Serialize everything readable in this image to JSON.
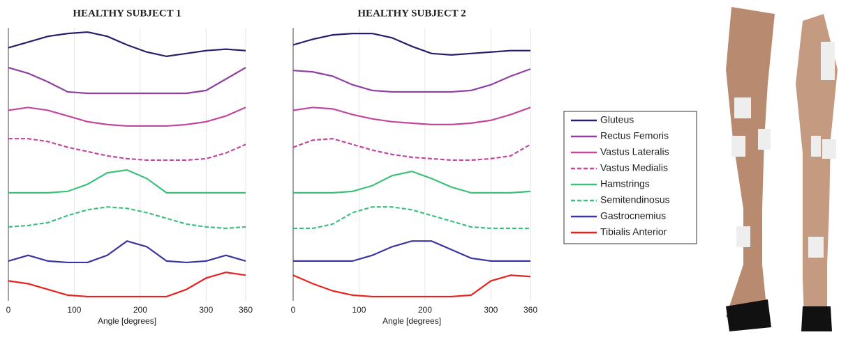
{
  "chart_data": [
    {
      "type": "line",
      "title": "HEALTHY SUBJECT 1",
      "xlabel": "Angle [degrees]",
      "x": [
        0,
        30,
        60,
        90,
        120,
        150,
        180,
        210,
        240,
        270,
        300,
        330,
        360
      ],
      "xlim": [
        0,
        360
      ],
      "xticks": [
        0,
        100,
        200,
        300,
        360
      ],
      "ylim": [
        0,
        1
      ],
      "grid": true,
      "series": [
        {
          "name": "Gluteus",
          "color": "#2b1b6b",
          "dash": false,
          "values": [
            0.4,
            0.6,
            0.8,
            0.9,
            0.95,
            0.8,
            0.5,
            0.25,
            0.1,
            0.2,
            0.3,
            0.35,
            0.3
          ]
        },
        {
          "name": "Rectus Femoris",
          "color": "#8e3fa0",
          "dash": false,
          "values": [
            0.9,
            0.7,
            0.4,
            0.05,
            0,
            0,
            0,
            0,
            0,
            0,
            0.1,
            0.5,
            0.9
          ]
        },
        {
          "name": "Vastus Lateralis",
          "color": "#c2469e",
          "dash": false,
          "values": [
            0.6,
            0.7,
            0.6,
            0.4,
            0.2,
            0.1,
            0.05,
            0.05,
            0.05,
            0.1,
            0.2,
            0.4,
            0.7
          ]
        },
        {
          "name": "Vastus Medialis",
          "color": "#c2469e",
          "dash": true,
          "values": [
            0.8,
            0.8,
            0.7,
            0.5,
            0.35,
            0.2,
            0.1,
            0.05,
            0.05,
            0.05,
            0.1,
            0.3,
            0.6
          ]
        },
        {
          "name": "Hamstrings",
          "color": "#3cbf7a",
          "dash": false,
          "values": [
            0.1,
            0.1,
            0.1,
            0.15,
            0.4,
            0.8,
            0.9,
            0.6,
            0.1,
            0.1,
            0.1,
            0.1,
            0.1
          ]
        },
        {
          "name": "Semitendinosus",
          "color": "#3cbf7a",
          "dash": true,
          "values": [
            0.1,
            0.15,
            0.25,
            0.5,
            0.7,
            0.8,
            0.75,
            0.6,
            0.4,
            0.2,
            0.1,
            0.05,
            0.1
          ]
        },
        {
          "name": "Gastrocnemius",
          "color": "#3b34a0",
          "dash": false,
          "values": [
            0.1,
            0.3,
            0.1,
            0.05,
            0.05,
            0.3,
            0.8,
            0.6,
            0.1,
            0.05,
            0.1,
            0.3,
            0.1
          ]
        },
        {
          "name": "Tibialis Anterior",
          "color": "#e8201e",
          "dash": false,
          "values": [
            0.6,
            0.5,
            0.3,
            0.1,
            0.05,
            0.05,
            0.05,
            0.05,
            0.05,
            0.3,
            0.7,
            0.9,
            0.8
          ]
        }
      ]
    },
    {
      "type": "line",
      "title": "HEALTHY SUBJECT 2",
      "xlabel": "Angle [degrees]",
      "x": [
        0,
        30,
        60,
        90,
        120,
        150,
        180,
        210,
        240,
        270,
        300,
        330,
        360
      ],
      "xlim": [
        0,
        360
      ],
      "xticks": [
        0,
        100,
        200,
        300,
        360
      ],
      "ylim": [
        0,
        1
      ],
      "grid": true,
      "series": [
        {
          "color": "#2b1b6b",
          "dash": false,
          "values": [
            0.5,
            0.7,
            0.85,
            0.9,
            0.9,
            0.75,
            0.45,
            0.2,
            0.15,
            0.2,
            0.25,
            0.3,
            0.3
          ]
        },
        {
          "color": "#8e3fa0",
          "dash": false,
          "values": [
            0.8,
            0.75,
            0.6,
            0.3,
            0.1,
            0.05,
            0.05,
            0.05,
            0.05,
            0.1,
            0.3,
            0.6,
            0.85
          ]
        },
        {
          "color": "#c2469e",
          "dash": false,
          "values": [
            0.6,
            0.7,
            0.65,
            0.45,
            0.3,
            0.2,
            0.15,
            0.1,
            0.1,
            0.15,
            0.25,
            0.45,
            0.7
          ]
        },
        {
          "color": "#c2469e",
          "dash": true,
          "values": [
            0.5,
            0.75,
            0.8,
            0.6,
            0.4,
            0.25,
            0.15,
            0.1,
            0.05,
            0.05,
            0.1,
            0.2,
            0.6
          ]
        },
        {
          "color": "#3cbf7a",
          "dash": false,
          "values": [
            0.1,
            0.1,
            0.1,
            0.15,
            0.35,
            0.7,
            0.85,
            0.6,
            0.3,
            0.1,
            0.1,
            0.1,
            0.15
          ]
        },
        {
          "color": "#3cbf7a",
          "dash": true,
          "values": [
            0.05,
            0.05,
            0.2,
            0.6,
            0.8,
            0.8,
            0.7,
            0.5,
            0.3,
            0.1,
            0.05,
            0.05,
            0.05
          ]
        },
        {
          "color": "#3b34a0",
          "dash": false,
          "values": [
            0.1,
            0.1,
            0.1,
            0.1,
            0.3,
            0.6,
            0.8,
            0.8,
            0.5,
            0.2,
            0.1,
            0.1,
            0.1
          ]
        },
        {
          "color": "#e8201e",
          "dash": false,
          "values": [
            0.8,
            0.5,
            0.25,
            0.1,
            0.05,
            0.05,
            0.05,
            0.05,
            0.05,
            0.1,
            0.6,
            0.8,
            0.75
          ]
        }
      ]
    }
  ]
}
